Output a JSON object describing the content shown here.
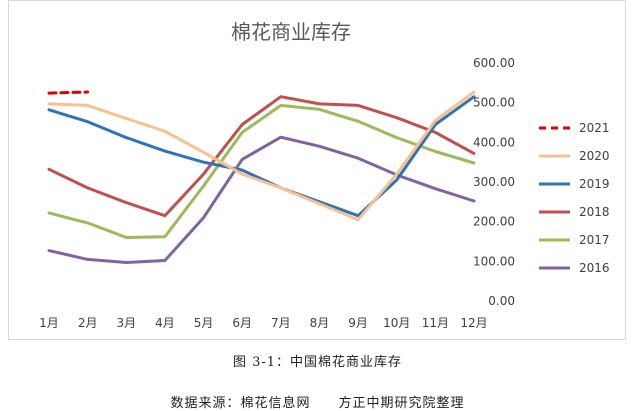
{
  "chart_data": {
    "type": "line",
    "title": "棉花商业库存",
    "categories": [
      "1月",
      "2月",
      "3月",
      "4月",
      "5月",
      "6月",
      "7月",
      "8月",
      "9月",
      "10月",
      "11月",
      "12月"
    ],
    "yticks": [
      "0.00",
      "100.00",
      "200.00",
      "300.00",
      "400.00",
      "500.00",
      "600.00"
    ],
    "ylim": [
      0,
      600
    ],
    "y_axis_side": "right",
    "grid": false,
    "legend_position": "right",
    "series": [
      {
        "name": "2021",
        "color": "#e00000",
        "dashed": true,
        "values": [
          524,
          527,
          null,
          null,
          null,
          null,
          null,
          null,
          null,
          null,
          null,
          null
        ]
      },
      {
        "name": "2020",
        "color": "#fac090",
        "dashed": false,
        "values": [
          497,
          493,
          460,
          428,
          375,
          320,
          285,
          245,
          205,
          320,
          455,
          527
        ]
      },
      {
        "name": "2019",
        "color": "#2e75b6",
        "dashed": false,
        "values": [
          482,
          452,
          412,
          378,
          350,
          330,
          285,
          250,
          215,
          305,
          445,
          515
        ]
      },
      {
        "name": "2018",
        "color": "#c0504d",
        "dashed": false,
        "values": [
          332,
          285,
          248,
          215,
          320,
          445,
          515,
          497,
          493,
          462,
          425,
          372
        ]
      },
      {
        "name": "2017",
        "color": "#9bbb59",
        "dashed": false,
        "values": [
          222,
          197,
          160,
          162,
          290,
          425,
          493,
          483,
          453,
          412,
          377,
          348
        ]
      },
      {
        "name": "2016",
        "color": "#8064a2",
        "dashed": false,
        "values": [
          127,
          105,
          97,
          102,
          210,
          357,
          413,
          390,
          360,
          318,
          283,
          252
        ]
      }
    ]
  },
  "captions": {
    "figure": "图 3-1：中国棉花商业库存",
    "source": "数据来源：棉花信息网　　方正中期研究院整理"
  }
}
